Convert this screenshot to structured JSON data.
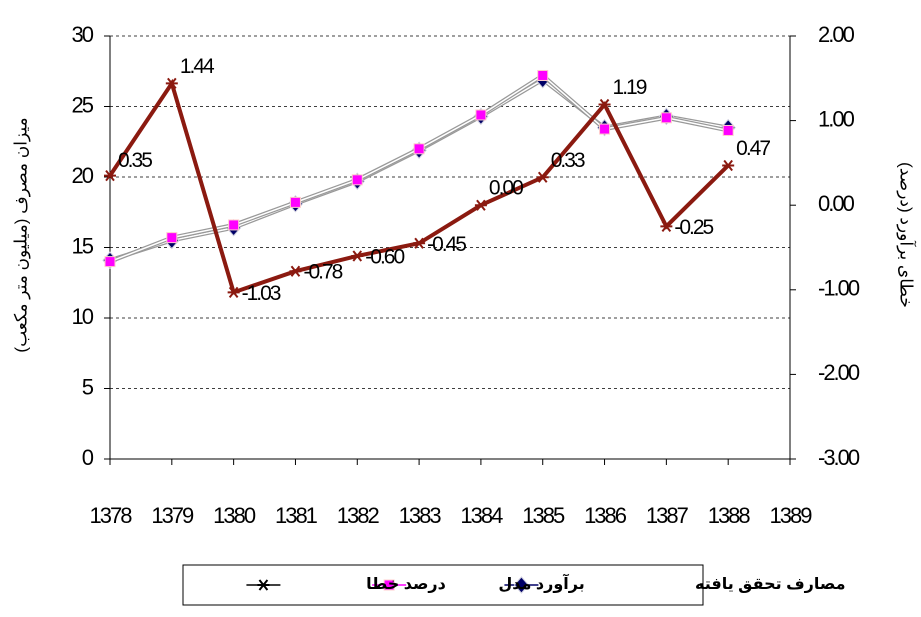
{
  "chart_data": {
    "type": "line",
    "y_label": "میزان مصرف (میلیون متر مکعب)",
    "y2_label": "خطای برآورد (درصد)",
    "categories": [
      "1378",
      "1379",
      "1380",
      "1381",
      "1382",
      "1383",
      "1384",
      "1385",
      "1386",
      "1387",
      "1388",
      "1389"
    ],
    "ylim": [
      0,
      30
    ],
    "yticks": [
      0,
      5,
      10,
      15,
      20,
      25,
      30
    ],
    "y2lim": [
      -3,
      2
    ],
    "y2ticks": [
      {
        "value": -3,
        "label": "-3.00"
      },
      {
        "value": -2,
        "label": "-2.00"
      },
      {
        "value": -1,
        "label": "-1.00"
      },
      {
        "value": 0,
        "label": "0.00"
      },
      {
        "value": 1,
        "label": "1.00"
      },
      {
        "value": 2,
        "label": "2.00"
      }
    ],
    "grid": true,
    "legend": "bottom",
    "series": [
      {
        "name": "مصارف تحقق یافته",
        "color": "#000066",
        "marker": "diamond",
        "values": [
          14.1,
          15.5,
          16.4,
          18.1,
          19.7,
          21.9,
          24.3,
          26.9,
          23.5,
          24.3,
          23.5,
          null
        ]
      },
      {
        "name": "برآورد مدل",
        "color": "#ff00ff",
        "marker": "square",
        "values": [
          14.0,
          15.7,
          16.6,
          18.2,
          19.8,
          22.0,
          24.4,
          27.2,
          23.4,
          24.2,
          23.3,
          null
        ]
      },
      {
        "name": "درصد خطا",
        "color": "#8b1a10",
        "marker": "asterisk",
        "axis": "y2",
        "values": [
          0.35,
          1.44,
          -1.03,
          -0.78,
          -0.6,
          -0.45,
          0,
          0.33,
          1.19,
          -0.25,
          0.47,
          null
        ],
        "value_labels": [
          "0.35",
          "1.44",
          "-1.03",
          "-0.78",
          "-0.60",
          "-0.45",
          "0.00",
          "0.33",
          "1.19",
          "-0.25",
          "0.47",
          null
        ]
      }
    ]
  }
}
